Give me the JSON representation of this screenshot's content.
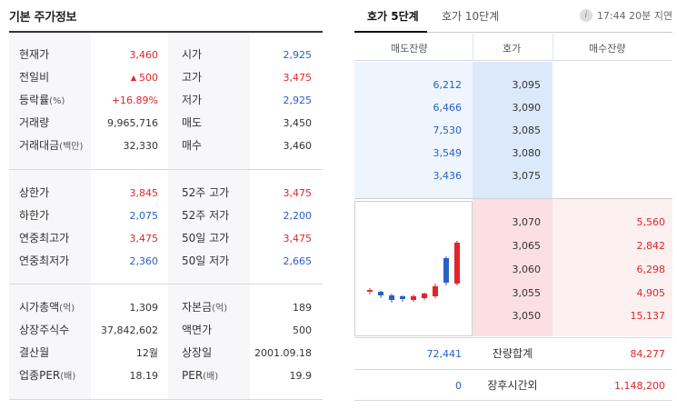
{
  "basic_info": {
    "title": "기본 주가정보",
    "section1": [
      {
        "label": "현재가",
        "value": "3,460",
        "label2": "시가",
        "value2": "2,925"
      },
      {
        "label": "전일비",
        "value": "500",
        "value_arrow": "▲",
        "label2": "고가",
        "value2": "3,475"
      },
      {
        "label": "등락률",
        "label_unit": "(%)",
        "value": "+16.89%",
        "label2": "저가",
        "value2": "2,925"
      },
      {
        "label": "거래량",
        "value": "9,965,716",
        "label2": "매도",
        "value2": "3,450"
      },
      {
        "label": "거래대금",
        "label_unit": "(백만)",
        "value": "32,330",
        "label2": "매수",
        "value2": "3,460"
      }
    ],
    "section2": [
      {
        "label": "상한가",
        "value": "3,845",
        "label2": "52주 고가",
        "value2": "3,475"
      },
      {
        "label": "하한가",
        "value": "2,075",
        "label2": "52주 저가",
        "value2": "2,200"
      },
      {
        "label": "연중최고가",
        "value": "3,475",
        "label2": "50일 고가",
        "value2": "3,475"
      },
      {
        "label": "연중최저가",
        "value": "2,360",
        "label2": "50일 저가",
        "value2": "2,665"
      }
    ],
    "section3": [
      {
        "label": "시가총액",
        "label_unit": "(억)",
        "value": "1,309",
        "label2": "자본금",
        "label2_unit": "(억)",
        "value2": "189"
      },
      {
        "label": "상장주식수",
        "value": "37,842,602",
        "label2": "액면가",
        "value2": "500"
      },
      {
        "label": "결산월",
        "value": "12월",
        "label2": "상장일",
        "value2": "2001.09.18"
      },
      {
        "label": "업종PER",
        "label_unit": "(배)",
        "value": "18.19",
        "label2": "PER",
        "label2_unit": "(배)",
        "value2": "19.9"
      }
    ]
  },
  "orderbook": {
    "tabs": [
      {
        "label": "호가 5단계",
        "active": true
      },
      {
        "label": "호가 10단계",
        "active": false
      }
    ],
    "delay_info": {
      "icon": "info-icon",
      "text": "17:44 20분 지연"
    },
    "headers": {
      "ask_qty": "매도잔량",
      "price": "호가",
      "bid_qty": "매수잔량"
    },
    "asks": [
      {
        "qty": "6,212",
        "price": "3,095"
      },
      {
        "qty": "6,466",
        "price": "3,090"
      },
      {
        "qty": "7,530",
        "price": "3,085"
      },
      {
        "qty": "3,549",
        "price": "3,080"
      },
      {
        "qty": "3,436",
        "price": "3,075"
      }
    ],
    "bids": [
      {
        "price": "3,070",
        "qty": "5,560"
      },
      {
        "price": "3,065",
        "qty": "2,842"
      },
      {
        "price": "3,060",
        "qty": "6,298"
      },
      {
        "price": "3,055",
        "qty": "4,905"
      },
      {
        "price": "3,050",
        "qty": "15,137"
      }
    ],
    "total": {
      "label": "잔량합계",
      "ask": "72,441",
      "bid": "84,277"
    },
    "after_hours": {
      "label": "장후시간외",
      "ask": "0",
      "bid": "1,148,200"
    }
  },
  "colors": {
    "up": "#e0252a",
    "down": "#2860c6",
    "neutral": "#333333"
  }
}
